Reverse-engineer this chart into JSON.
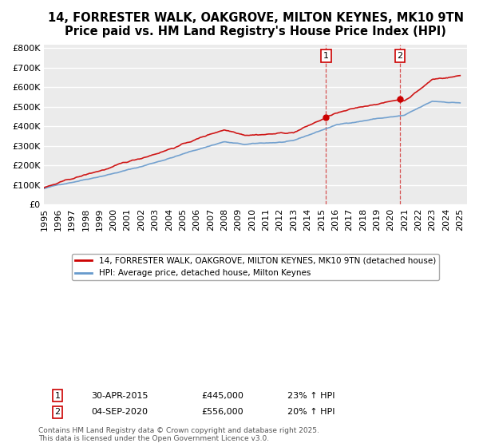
{
  "title": "14, FORRESTER WALK, OAKGROVE, MILTON KEYNES, MK10 9TN",
  "subtitle": "Price paid vs. HM Land Registry's House Price Index (HPI)",
  "ylabel_ticks": [
    "£0",
    "£100K",
    "£200K",
    "£300K",
    "£400K",
    "£500K",
    "£600K",
    "£700K",
    "£800K"
  ],
  "ytick_values": [
    0,
    100000,
    200000,
    300000,
    400000,
    500000,
    600000,
    700000,
    800000
  ],
  "ylim": [
    0,
    820000
  ],
  "xlim_start": 1995.0,
  "xlim_end": 2025.5,
  "red_color": "#cc0000",
  "blue_color": "#6699cc",
  "marker1_x": 2015.33,
  "marker2_x": 2020.67,
  "marker1_price": 445000,
  "marker2_price": 556000,
  "legend_red": "14, FORRESTER WALK, OAKGROVE, MILTON KEYNES, MK10 9TN (detached house)",
  "legend_blue": "HPI: Average price, detached house, Milton Keynes",
  "footer": "Contains HM Land Registry data © Crown copyright and database right 2025.\nThis data is licensed under the Open Government Licence v3.0.",
  "background_color": "#ffffff",
  "plot_bg_color": "#ebebeb",
  "grid_color": "#ffffff",
  "title_fontsize": 10.5,
  "tick_fontsize": 8.0
}
